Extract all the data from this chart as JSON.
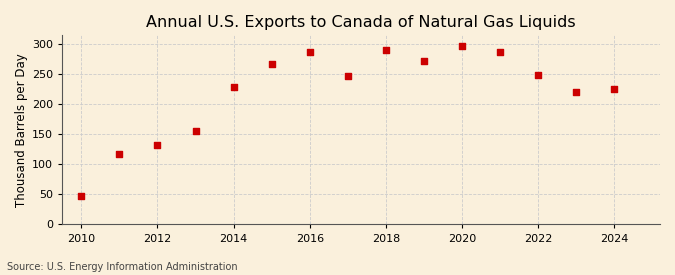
{
  "title": "Annual U.S. Exports to Canada of Natural Gas Liquids",
  "ylabel": "Thousand Barrels per Day",
  "source": "Source: U.S. Energy Information Administration",
  "years": [
    2010,
    2011,
    2012,
    2013,
    2014,
    2015,
    2016,
    2017,
    2018,
    2019,
    2020,
    2021,
    2022,
    2023,
    2024
  ],
  "values": [
    47,
    117,
    133,
    156,
    229,
    267,
    288,
    248,
    291,
    272,
    297,
    287,
    249,
    220,
    225
  ],
  "marker_color": "#cc0000",
  "marker": "s",
  "marker_size": 4,
  "bg_color": "#faf0dc",
  "grid_color": "#cccccc",
  "grid_linestyle": "--",
  "xlim": [
    2009.5,
    2025.2
  ],
  "ylim": [
    0,
    315
  ],
  "yticks": [
    0,
    50,
    100,
    150,
    200,
    250,
    300
  ],
  "xticks": [
    2010,
    2012,
    2014,
    2016,
    2018,
    2020,
    2022,
    2024
  ],
  "title_fontsize": 11.5,
  "label_fontsize": 8.5,
  "tick_fontsize": 8,
  "source_fontsize": 7
}
